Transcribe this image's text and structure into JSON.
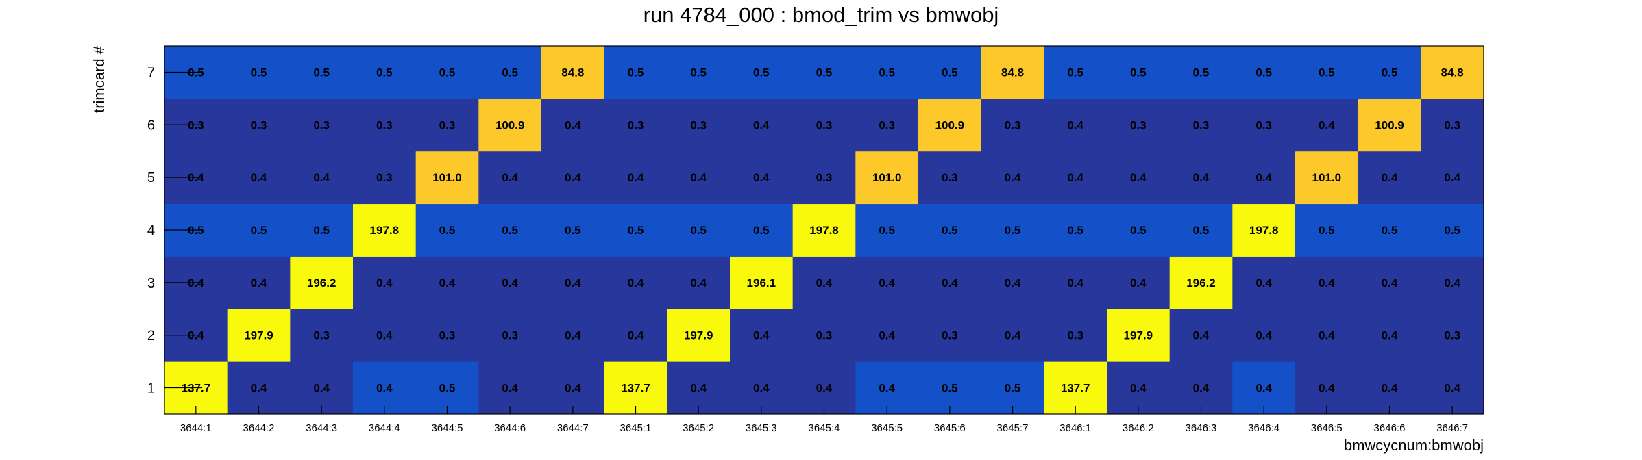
{
  "chart_data": {
    "type": "heatmap",
    "title": "run 4784_000 : bmod_trim vs bmwobj",
    "xlabel": "bmwcycnum:bmwobj",
    "ylabel": "trimcard #",
    "x_categories": [
      "3644:1",
      "3644:2",
      "3644:3",
      "3644:4",
      "3644:5",
      "3644:6",
      "3644:7",
      "3645:1",
      "3645:2",
      "3645:3",
      "3645:4",
      "3645:5",
      "3645:6",
      "3645:7",
      "3646:1",
      "3646:2",
      "3646:3",
      "3646:4",
      "3646:5",
      "3646:6",
      "3646:7"
    ],
    "y_categories": [
      "1",
      "2",
      "3",
      "4",
      "5",
      "6",
      "7"
    ],
    "values": [
      [
        "137.7",
        "0.4",
        "0.4",
        "0.4",
        "0.5",
        "0.4",
        "0.4",
        "137.7",
        "0.4",
        "0.4",
        "0.4",
        "0.4",
        "0.5",
        "0.5",
        "137.7",
        "0.4",
        "0.4",
        "0.4",
        "0.4",
        "0.4",
        "0.4"
      ],
      [
        "0.4",
        "197.9",
        "0.3",
        "0.4",
        "0.3",
        "0.3",
        "0.4",
        "0.4",
        "197.9",
        "0.4",
        "0.3",
        "0.4",
        "0.3",
        "0.4",
        "0.3",
        "197.9",
        "0.4",
        "0.4",
        "0.4",
        "0.4",
        "0.3"
      ],
      [
        "0.4",
        "0.4",
        "196.2",
        "0.4",
        "0.4",
        "0.4",
        "0.4",
        "0.4",
        "0.4",
        "196.1",
        "0.4",
        "0.4",
        "0.4",
        "0.4",
        "0.4",
        "0.4",
        "196.2",
        "0.4",
        "0.4",
        "0.4",
        "0.4"
      ],
      [
        "0.5",
        "0.5",
        "0.5",
        "197.8",
        "0.5",
        "0.5",
        "0.5",
        "0.5",
        "0.5",
        "0.5",
        "197.8",
        "0.5",
        "0.5",
        "0.5",
        "0.5",
        "0.5",
        "0.5",
        "197.8",
        "0.5",
        "0.5",
        "0.5"
      ],
      [
        "0.4",
        "0.4",
        "0.4",
        "0.3",
        "101.0",
        "0.4",
        "0.4",
        "0.4",
        "0.4",
        "0.4",
        "0.3",
        "101.0",
        "0.3",
        "0.4",
        "0.4",
        "0.4",
        "0.4",
        "0.4",
        "101.0",
        "0.4",
        "0.4"
      ],
      [
        "0.3",
        "0.3",
        "0.3",
        "0.3",
        "0.3",
        "100.9",
        "0.4",
        "0.3",
        "0.3",
        "0.4",
        "0.3",
        "0.3",
        "100.9",
        "0.3",
        "0.4",
        "0.3",
        "0.3",
        "0.3",
        "0.4",
        "100.9",
        "0.3"
      ],
      [
        "0.5",
        "0.5",
        "0.5",
        "0.5",
        "0.5",
        "0.5",
        "84.8",
        "0.5",
        "0.5",
        "0.5",
        "0.5",
        "0.5",
        "0.5",
        "84.8",
        "0.5",
        "0.5",
        "0.5",
        "0.5",
        "0.5",
        "0.5",
        "84.8"
      ]
    ],
    "colors": {
      "dark_blue": "#27379b",
      "mid_blue": "#1450c8",
      "orange": "#fcc82a",
      "yellow": "#f9f90e"
    },
    "cell_colors": [
      [
        "yellow",
        "dark_blue",
        "dark_blue",
        "mid_blue",
        "mid_blue",
        "dark_blue",
        "dark_blue",
        "yellow",
        "dark_blue",
        "dark_blue",
        "dark_blue",
        "mid_blue",
        "mid_blue",
        "mid_blue",
        "yellow",
        "dark_blue",
        "dark_blue",
        "mid_blue",
        "dark_blue",
        "dark_blue",
        "dark_blue"
      ],
      [
        "dark_blue",
        "yellow",
        "dark_blue",
        "dark_blue",
        "dark_blue",
        "dark_blue",
        "dark_blue",
        "dark_blue",
        "yellow",
        "dark_blue",
        "dark_blue",
        "dark_blue",
        "dark_blue",
        "dark_blue",
        "dark_blue",
        "yellow",
        "dark_blue",
        "dark_blue",
        "dark_blue",
        "dark_blue",
        "dark_blue"
      ],
      [
        "dark_blue",
        "dark_blue",
        "yellow",
        "dark_blue",
        "dark_blue",
        "dark_blue",
        "dark_blue",
        "dark_blue",
        "dark_blue",
        "yellow",
        "dark_blue",
        "dark_blue",
        "dark_blue",
        "dark_blue",
        "dark_blue",
        "dark_blue",
        "yellow",
        "dark_blue",
        "dark_blue",
        "dark_blue",
        "dark_blue"
      ],
      [
        "mid_blue",
        "mid_blue",
        "mid_blue",
        "yellow",
        "mid_blue",
        "mid_blue",
        "mid_blue",
        "mid_blue",
        "mid_blue",
        "mid_blue",
        "yellow",
        "mid_blue",
        "mid_blue",
        "mid_blue",
        "mid_blue",
        "mid_blue",
        "mid_blue",
        "yellow",
        "mid_blue",
        "mid_blue",
        "mid_blue"
      ],
      [
        "dark_blue",
        "dark_blue",
        "dark_blue",
        "dark_blue",
        "orange",
        "dark_blue",
        "dark_blue",
        "dark_blue",
        "dark_blue",
        "dark_blue",
        "dark_blue",
        "orange",
        "dark_blue",
        "dark_blue",
        "dark_blue",
        "dark_blue",
        "dark_blue",
        "dark_blue",
        "orange",
        "dark_blue",
        "dark_blue"
      ],
      [
        "dark_blue",
        "dark_blue",
        "dark_blue",
        "dark_blue",
        "dark_blue",
        "orange",
        "dark_blue",
        "dark_blue",
        "dark_blue",
        "dark_blue",
        "dark_blue",
        "dark_blue",
        "orange",
        "dark_blue",
        "dark_blue",
        "dark_blue",
        "dark_blue",
        "dark_blue",
        "dark_blue",
        "orange",
        "dark_blue"
      ],
      [
        "mid_blue",
        "mid_blue",
        "mid_blue",
        "mid_blue",
        "mid_blue",
        "mid_blue",
        "orange",
        "mid_blue",
        "mid_blue",
        "mid_blue",
        "mid_blue",
        "mid_blue",
        "mid_blue",
        "orange",
        "mid_blue",
        "mid_blue",
        "mid_blue",
        "mid_blue",
        "mid_blue",
        "mid_blue",
        "orange"
      ]
    ]
  }
}
